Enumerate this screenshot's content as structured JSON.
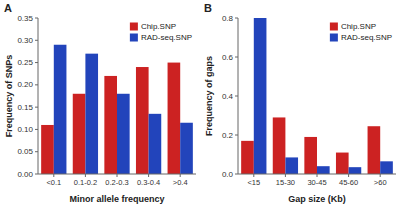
{
  "chart_data": [
    {
      "type": "bar",
      "title": "A",
      "categories": [
        "<0.1",
        "0.1-0.2",
        "0.2-0.3",
        "0.3-0.4",
        ">0.4"
      ],
      "series": [
        {
          "name": "Chip.SNP",
          "color": "#CC2222",
          "values": [
            0.11,
            0.18,
            0.22,
            0.24,
            0.25
          ]
        },
        {
          "name": "RAD-seq.SNP",
          "color": "#2244BB",
          "values": [
            0.29,
            0.27,
            0.18,
            0.135,
            0.115
          ]
        }
      ],
      "xlabel": "Minor allele frequency",
      "ylabel": "Frequency of SNPs",
      "ylim": [
        0.0,
        0.35
      ],
      "yticks": [
        {
          "value": 0.0,
          "label": "0.00"
        },
        0.05,
        {
          "value": 0.1,
          "label": "0.10"
        },
        0.15,
        {
          "value": 0.2,
          "label": "0.20"
        },
        0.25,
        {
          "value": 0.3,
          "label": "0.30"
        },
        0.35
      ],
      "legend": "upper right"
    },
    {
      "type": "bar",
      "title": "B",
      "categories": [
        "<15",
        "15-30",
        "30-45",
        "45-60",
        ">60"
      ],
      "series": [
        {
          "name": "Chip.SNP",
          "color": "#CC2222",
          "values": [
            0.17,
            0.29,
            0.19,
            0.11,
            0.245
          ]
        },
        {
          "name": "RAD-seq.SNP",
          "color": "#2244BB",
          "values": [
            0.8,
            0.085,
            0.04,
            0.035,
            0.065
          ]
        }
      ],
      "xlabel": "Gap size (Kb)",
      "ylabel": "Frequency of gaps",
      "ylim": [
        0.0,
        0.8
      ],
      "yticks": [
        {
          "value": 0.0,
          "label": "0.0"
        },
        0.2,
        0.4,
        0.6,
        0.8
      ],
      "legend": "upper right"
    }
  ]
}
